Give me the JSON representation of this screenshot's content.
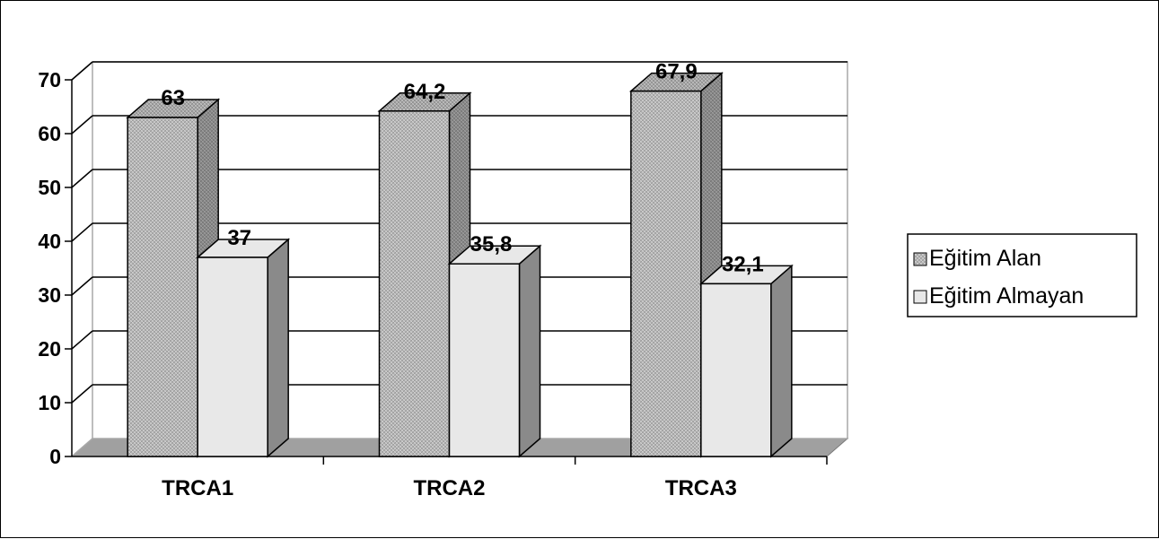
{
  "chart_data": {
    "type": "bar",
    "style": "3d-clustered-column",
    "categories": [
      "TRCA1",
      "TRCA2",
      "TRCA3"
    ],
    "series": [
      {
        "name": "Eğitim Alan",
        "values": [
          63,
          64.2,
          67.9
        ],
        "labels": [
          "63",
          "64,2",
          "67,9"
        ],
        "color": "#b4b4b4",
        "side_color": "#8f8f8f",
        "pattern": "fine-crosshatch"
      },
      {
        "name": "Eğitim Almayan",
        "values": [
          37,
          35.8,
          32.1
        ],
        "labels": [
          "37",
          "35,8",
          "32,1"
        ],
        "color": "#e8e8e8",
        "side_color": "#8a8a8a",
        "pattern": "none"
      }
    ],
    "yticks": [
      "0",
      "10",
      "20",
      "30",
      "40",
      "50",
      "60",
      "70"
    ],
    "ylim": [
      0,
      70
    ],
    "grid": true,
    "legend_position": "right",
    "floor_color": "#a0a0a0"
  }
}
